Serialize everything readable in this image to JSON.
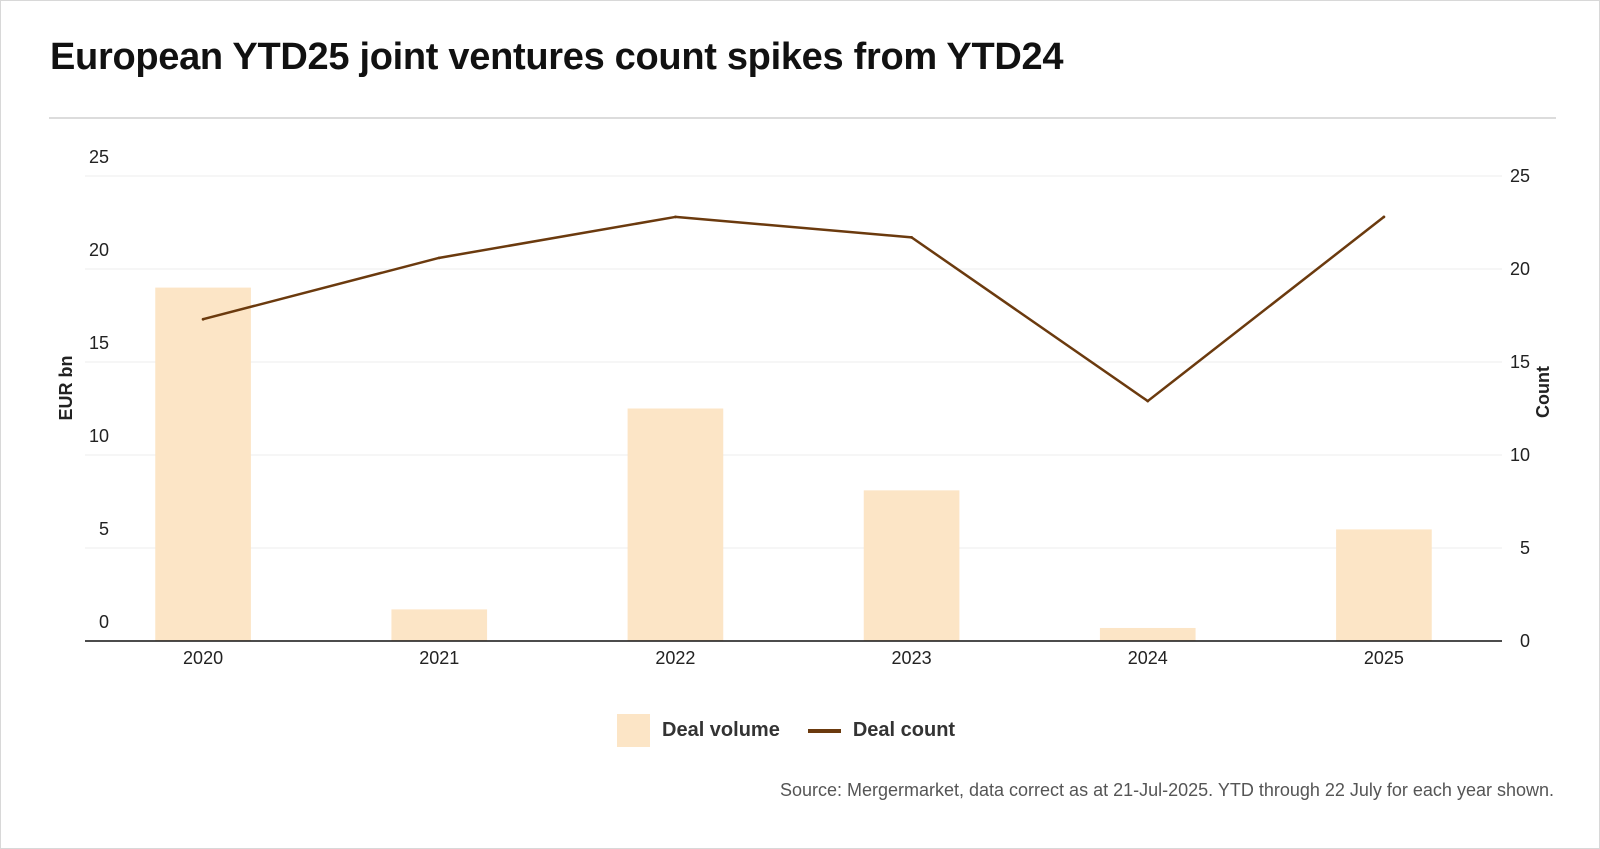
{
  "title": "European YTD25 joint ventures count spikes from YTD24",
  "source": "Source: Mergermarket, data correct as at 21-Jul-2025. YTD through 22 July for each year shown.",
  "colors": {
    "bar": "#fce5c6",
    "line": "#6b3a0e",
    "grid": "#ececec",
    "axis": "#111111"
  },
  "legend": {
    "bar_label": "Deal volume",
    "line_label": "Deal count"
  },
  "chart_data": {
    "type": "bar",
    "title": "European YTD25 joint ventures count spikes from YTD24",
    "categories": [
      "2020",
      "2021",
      "2022",
      "2023",
      "2024",
      "2025"
    ],
    "series": [
      {
        "name": "Deal volume",
        "type": "bar",
        "axis": "left",
        "values": [
          19.0,
          1.7,
          12.5,
          8.1,
          0.7,
          6.0
        ]
      },
      {
        "name": "Deal count",
        "type": "line",
        "axis": "right",
        "values": [
          17.3,
          20.6,
          22.8,
          21.7,
          12.9,
          22.8
        ]
      }
    ],
    "ylabel": "EUR bn",
    "y2label": "Count",
    "ylim": [
      0,
      25
    ],
    "y2lim": [
      0,
      25
    ],
    "yticks": [
      "0",
      "5",
      "10",
      "15",
      "20",
      "25"
    ],
    "y2ticks": [
      "0",
      "5",
      "10",
      "15",
      "20",
      "25"
    ],
    "grid": true,
    "legend_position": "bottom"
  }
}
